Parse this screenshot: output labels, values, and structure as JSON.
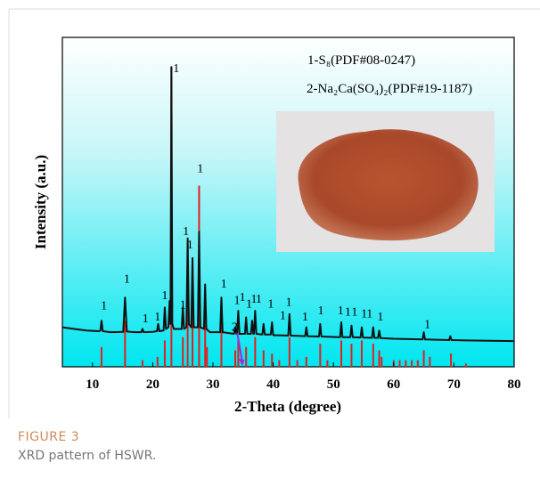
{
  "chart_data": {
    "type": "line",
    "xlabel": "2-Theta (degree)",
    "ylabel": "Intensity (a.u.)",
    "xlim": [
      5,
      80
    ],
    "xticks": [
      10,
      20,
      30,
      40,
      50,
      60,
      70,
      80
    ],
    "ylim": [
      0,
      100
    ],
    "x": [
      5,
      7,
      9,
      11,
      11.3,
      11.5,
      11.7,
      13,
      15.1,
      15.4,
      15.7,
      17,
      18.1,
      18.3,
      18.5,
      20,
      20.7,
      20.9,
      21.1,
      21.8,
      22.0,
      22.2,
      22.6,
      22.8,
      22.95,
      23.1,
      23.25,
      23.5,
      24.8,
      25.0,
      25.2,
      25.6,
      25.8,
      26.0,
      26.4,
      26.6,
      26.8,
      27.5,
      27.7,
      27.9,
      28.5,
      28.7,
      28.9,
      29.5,
      31.2,
      31.4,
      31.6,
      33.5,
      33.7,
      33.9,
      34.0,
      34.2,
      34.4,
      35.3,
      35.5,
      35.7,
      36.3,
      36.5,
      36.7,
      36.8,
      37.0,
      37.2,
      38.2,
      38.4,
      38.6,
      39.6,
      39.8,
      40,
      42.5,
      42.7,
      42.9,
      45.3,
      45.5,
      45.7,
      47.6,
      47.8,
      48,
      51.1,
      51.3,
      51.5,
      52.8,
      53,
      53.2,
      54.5,
      54.7,
      54.9,
      56.4,
      56.6,
      56.8,
      57.4,
      57.6,
      57.8,
      60,
      64.8,
      65,
      65.2,
      69.2,
      69.4,
      69.6,
      72,
      76,
      80
    ],
    "series": [
      {
        "color": "#111111",
        "values": [
          12,
          11.5,
          11,
          10.8,
          11,
          14,
          10.8,
          10.5,
          10.6,
          21,
          10.7,
          10.5,
          10.5,
          11.5,
          10.5,
          10.6,
          10.8,
          13,
          10.8,
          11,
          18,
          11.5,
          12,
          20,
          13,
          91,
          13,
          11.5,
          11.5,
          18,
          11.5,
          12,
          39,
          13,
          12,
          33,
          12,
          12,
          41,
          12,
          11.5,
          25,
          11.5,
          10.5,
          10.5,
          21,
          10.5,
          10,
          12,
          10,
          10,
          17,
          10,
          10,
          15,
          10,
          10,
          14,
          10,
          10,
          17,
          10,
          9.8,
          13,
          9.8,
          9.8,
          13.5,
          9.6,
          9.5,
          16,
          9.5,
          9.3,
          12,
          9.3,
          9.2,
          13,
          9.2,
          9,
          13.5,
          9,
          9,
          12.5,
          9,
          8.9,
          12,
          8.9,
          8.8,
          12,
          8.8,
          8.8,
          11,
          8.7,
          8.5,
          8.3,
          10.5,
          8.3,
          8.1,
          9.3,
          8.1,
          8,
          7.9,
          7.8
        ]
      }
    ],
    "reference": {
      "color": "#e0201f",
      "x": [
        11.5,
        15.4,
        18.3,
        20.8,
        22.0,
        23.1,
        25.0,
        25.8,
        26.6,
        27.7,
        28.7,
        29.0,
        31.4,
        33.7,
        34.2,
        35.5,
        37.0,
        38.4,
        39.8,
        41,
        42.7,
        44,
        45.5,
        47.8,
        49,
        51.3,
        53,
        54.7,
        56.6,
        57.6,
        58,
        60,
        61,
        62,
        63,
        64,
        65,
        66,
        69.5,
        72
      ],
      "values": [
        6,
        14,
        2,
        3,
        8,
        91,
        9,
        30,
        17,
        55,
        22,
        6,
        18,
        5,
        8,
        6,
        9,
        5,
        4,
        2,
        9,
        2,
        3,
        7,
        2,
        8,
        7,
        8,
        7,
        5,
        3,
        2,
        2,
        2,
        2,
        2,
        5,
        3,
        4,
        1
      ]
    },
    "labels": [
      "1-S₈(PDF#08-0247)",
      "2-Na₂Ca(SO₄)₂(PDF#19-1187)"
    ],
    "annotations": [
      {
        "text": "1",
        "x": 11.9,
        "y": 17.5
      },
      {
        "text": "1",
        "x": 15.7,
        "y": 25.5
      },
      {
        "text": "1",
        "x": 18.8,
        "y": 13.5
      },
      {
        "text": "1",
        "x": 20.8,
        "y": 14
      },
      {
        "text": "1",
        "x": 22.0,
        "y": 20.5
      },
      {
        "text": "1",
        "x": 23.9,
        "y": 89.5
      },
      {
        "text": "1",
        "x": 25.0,
        "y": 17.7
      },
      {
        "text": "1",
        "x": 25.5,
        "y": 40
      },
      {
        "text": "1",
        "x": 26.2,
        "y": 36
      },
      {
        "text": "1",
        "x": 27.9,
        "y": 59
      },
      {
        "text": "1",
        "x": 31.8,
        "y": 24
      },
      {
        "text": "1",
        "x": 34.0,
        "y": 19
      },
      {
        "text": "1",
        "x": 34.9,
        "y": 20
      },
      {
        "text": "1",
        "x": 36.0,
        "y": 18
      },
      {
        "text": "1",
        "x": 36.8,
        "y": 19.5
      },
      {
        "text": "1",
        "x": 37.6,
        "y": 19.5
      },
      {
        "text": "1",
        "x": 39.6,
        "y": 18
      },
      {
        "text": "1",
        "x": 41.6,
        "y": 14.5
      },
      {
        "text": "1",
        "x": 42.6,
        "y": 18.5
      },
      {
        "text": "1",
        "x": 45.3,
        "y": 14
      },
      {
        "text": "1",
        "x": 47.9,
        "y": 16
      },
      {
        "text": "1",
        "x": 51.2,
        "y": 16
      },
      {
        "text": "1",
        "x": 52.4,
        "y": 15.5
      },
      {
        "text": "1",
        "x": 53.5,
        "y": 15.5
      },
      {
        "text": "1",
        "x": 55.1,
        "y": 15
      },
      {
        "text": "1",
        "x": 56.0,
        "y": 15
      },
      {
        "text": "1",
        "x": 57.8,
        "y": 14
      },
      {
        "text": "1",
        "x": 65.6,
        "y": 11.7
      },
      {
        "text": "2",
        "x": 33.6,
        "y": 11
      }
    ]
  },
  "caption": {
    "label": "FIGURE 3",
    "text": "XRD pattern of HSWR."
  }
}
